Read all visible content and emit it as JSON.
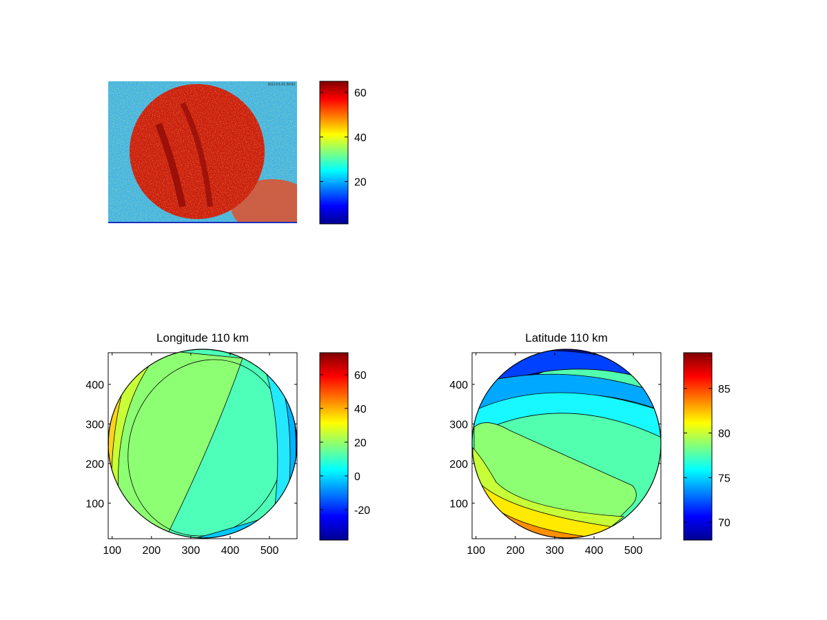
{
  "chart_data": [
    {
      "type": "heatmap",
      "title": "",
      "description_values": "raw camera image of aurora all-sky field",
      "colorbar": {
        "min": 1,
        "max": 65,
        "ticks": [
          20,
          40,
          60
        ],
        "colormap": "jet"
      },
      "stamp_text": "2012-01-01 00:00"
    },
    {
      "type": "heatmap",
      "title": "Longitude 110 km",
      "x_ticks": [
        100,
        200,
        300,
        400,
        500
      ],
      "y_ticks": [
        100,
        200,
        300,
        400
      ],
      "xlim": [
        90,
        570
      ],
      "ylim": [
        10,
        480
      ],
      "colorbar": {
        "min": -38,
        "max": 73,
        "ticks": [
          -20,
          0,
          20,
          40,
          60
        ],
        "colormap": "jet"
      },
      "contour_levels": [
        -30,
        -20,
        -10,
        0,
        10,
        20,
        30,
        40,
        50,
        60
      ]
    },
    {
      "type": "heatmap",
      "title": "Latitude 110 km",
      "x_ticks": [
        100,
        200,
        300,
        400,
        500
      ],
      "y_ticks": [
        100,
        200,
        300,
        400
      ],
      "xlim": [
        90,
        570
      ],
      "ylim": [
        10,
        480
      ],
      "colorbar": {
        "min": 68,
        "max": 89,
        "ticks": [
          70,
          75,
          80,
          85
        ],
        "colormap": "jet"
      },
      "contour_levels": [
        70,
        71,
        72,
        73,
        74,
        75,
        76,
        77,
        78,
        79,
        80,
        81,
        82,
        83,
        84,
        85,
        86,
        87,
        88
      ]
    }
  ]
}
